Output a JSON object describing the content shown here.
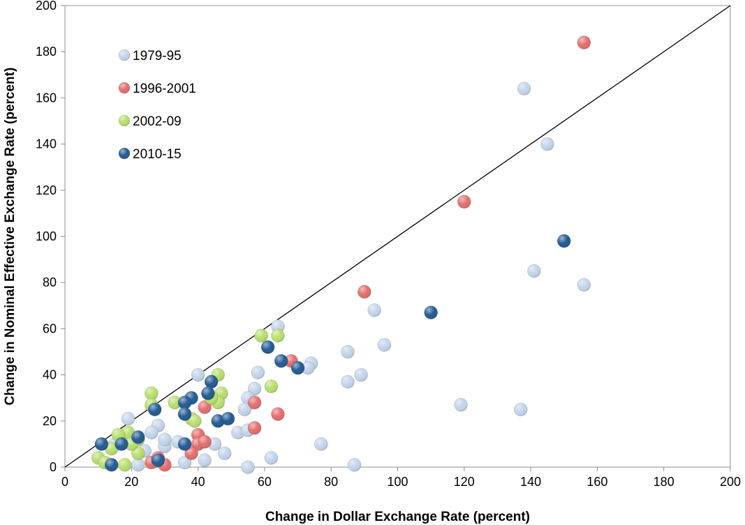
{
  "chart_data": {
    "type": "scatter",
    "title": "",
    "xlabel": "Change in Dollar Exchange Rate (percent)",
    "ylabel": "Change in Nominal Effective Exchange Rate (percent)",
    "xlim": [
      0,
      200
    ],
    "ylim": [
      0,
      200
    ],
    "xticks": [
      0,
      20,
      40,
      60,
      80,
      100,
      120,
      140,
      160,
      180,
      200
    ],
    "yticks": [
      0,
      20,
      40,
      60,
      80,
      100,
      120,
      140,
      160,
      180,
      200
    ],
    "grid": false,
    "legend_position": "top-left",
    "reference_line": {
      "from": [
        0,
        0
      ],
      "to": [
        200,
        200
      ]
    },
    "series": [
      {
        "name": "1979-95",
        "color": "#c3d4ea",
        "points": [
          [
            138,
            164
          ],
          [
            145,
            140
          ],
          [
            141,
            85
          ],
          [
            156,
            79
          ],
          [
            119,
            27
          ],
          [
            137,
            25
          ],
          [
            93,
            68
          ],
          [
            96,
            53
          ],
          [
            85,
            50
          ],
          [
            85,
            37
          ],
          [
            89,
            40
          ],
          [
            77,
            10
          ],
          [
            87,
            1
          ],
          [
            64,
            61
          ],
          [
            74,
            45
          ],
          [
            73,
            43
          ],
          [
            58,
            41
          ],
          [
            56,
            28
          ],
          [
            57,
            34
          ],
          [
            55,
            30
          ],
          [
            54,
            25
          ],
          [
            52,
            15
          ],
          [
            55,
            16
          ],
          [
            48,
            6
          ],
          [
            55,
            0
          ],
          [
            62,
            4
          ],
          [
            42,
            3
          ],
          [
            36,
            2
          ],
          [
            40,
            40
          ],
          [
            45,
            10
          ],
          [
            28,
            18
          ],
          [
            26,
            15
          ],
          [
            34,
            11
          ],
          [
            30,
            9
          ],
          [
            19,
            21
          ],
          [
            22,
            1
          ],
          [
            30,
            12
          ],
          [
            24,
            7
          ],
          [
            46,
            29
          ],
          [
            15,
            10
          ]
        ]
      },
      {
        "name": "1996-2001",
        "color": "#e46d6d",
        "points": [
          [
            156,
            184
          ],
          [
            120,
            115
          ],
          [
            90,
            76
          ],
          [
            68,
            46
          ],
          [
            57,
            28
          ],
          [
            64,
            23
          ],
          [
            57,
            17
          ],
          [
            42,
            26
          ],
          [
            40,
            14
          ],
          [
            40,
            10
          ],
          [
            42,
            11
          ],
          [
            38,
            6
          ],
          [
            30,
            1
          ],
          [
            26,
            2
          ],
          [
            28,
            4
          ]
        ]
      },
      {
        "name": "2002-09",
        "color": "#b7de6c",
        "points": [
          [
            59,
            57
          ],
          [
            64,
            57
          ],
          [
            46,
            40
          ],
          [
            62,
            35
          ],
          [
            47,
            32
          ],
          [
            46,
            28
          ],
          [
            44,
            30
          ],
          [
            26,
            32
          ],
          [
            33,
            28
          ],
          [
            38,
            21
          ],
          [
            39,
            20
          ],
          [
            26,
            27
          ],
          [
            19,
            15
          ],
          [
            16,
            14
          ],
          [
            22,
            12
          ],
          [
            10,
            4
          ],
          [
            12,
            2
          ],
          [
            18,
            1
          ],
          [
            22,
            6
          ],
          [
            14,
            8
          ],
          [
            20,
            10
          ]
        ]
      },
      {
        "name": "2010-15",
        "color": "#225a92",
        "points": [
          [
            150,
            98
          ],
          [
            110,
            67
          ],
          [
            61,
            52
          ],
          [
            65,
            46
          ],
          [
            70,
            43
          ],
          [
            44,
            37
          ],
          [
            43,
            32
          ],
          [
            38,
            30
          ],
          [
            36,
            28
          ],
          [
            36,
            23
          ],
          [
            46,
            20
          ],
          [
            49,
            21
          ],
          [
            27,
            25
          ],
          [
            22,
            13
          ],
          [
            36,
            10
          ],
          [
            17,
            10
          ],
          [
            11,
            10
          ],
          [
            28,
            3
          ],
          [
            14,
            1
          ]
        ]
      }
    ]
  }
}
